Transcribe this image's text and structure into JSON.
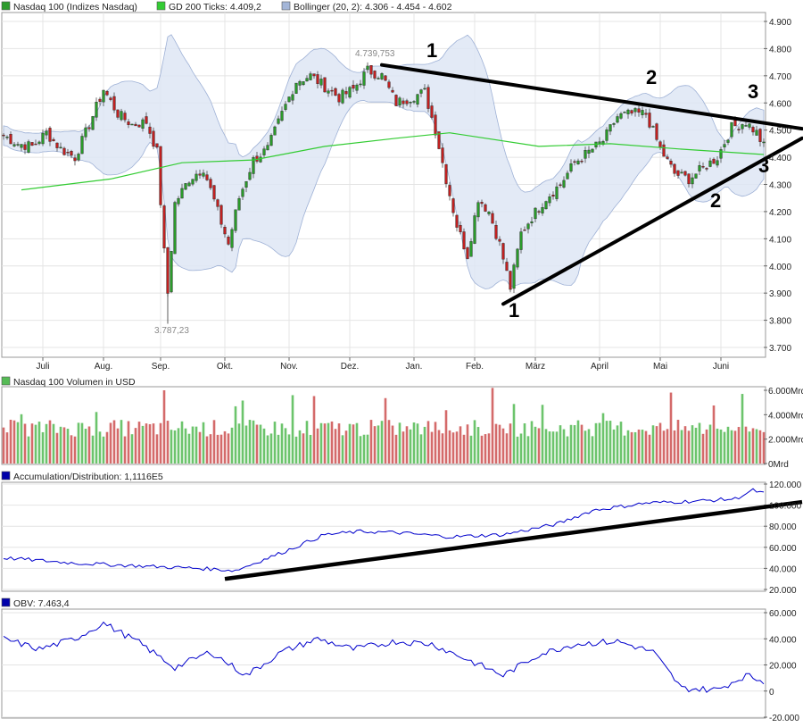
{
  "legend_top": [
    {
      "label": "Nasdaq 100 (Indizes Nasdaq)",
      "color": "#2e9c2e"
    },
    {
      "label": "GD 200 Ticks: 4.409,2",
      "color": "#33cc33"
    },
    {
      "label": "Bollinger (20, 2): 4.306 - 4.454 - 4.602",
      "color": "#a4b6d8"
    }
  ],
  "legend_volume": {
    "label": "Nasdaq 100 Volumen in USD",
    "color": "#55bb55"
  },
  "legend_ad": {
    "label": "Accumulation/Distribution: 1,1116E5",
    "color": "#0000aa"
  },
  "legend_obv": {
    "label": "OBV: 7.463,4",
    "color": "#0000aa"
  },
  "annotations": {
    "high": "4.739,753",
    "low": "3.787,23",
    "wave_marks": [
      "1",
      "2",
      "3",
      "1",
      "2",
      "3"
    ]
  },
  "chart_data": [
    {
      "type": "candlestick",
      "title": "Nasdaq 100 (Indizes Nasdaq)",
      "x_tick_labels": [
        "Juli",
        "Aug.",
        "Sep.",
        "Okt.",
        "Nov.",
        "Dez.",
        "Jan.",
        "Feb.",
        "März",
        "April",
        "Mai",
        "Juni"
      ],
      "y_tick_labels": [
        "4.900",
        "4.800",
        "4.700",
        "4.600",
        "4.500",
        "4.400",
        "4.300",
        "4.200",
        "4.100",
        "4.000",
        "3.900",
        "3.800",
        "3.700"
      ],
      "ylim": [
        3650,
        4950
      ],
      "close_series": [
        [
          0,
          4480
        ],
        [
          4,
          4450
        ],
        [
          8,
          4440
        ],
        [
          12,
          4490
        ],
        [
          16,
          4430
        ],
        [
          20,
          4400
        ],
        [
          24,
          4520
        ],
        [
          28,
          4650
        ],
        [
          32,
          4560
        ],
        [
          36,
          4520
        ],
        [
          40,
          4530
        ],
        [
          43,
          4420
        ],
        [
          45,
          4050
        ],
        [
          46,
          3900
        ],
        [
          48,
          4230
        ],
        [
          52,
          4320
        ],
        [
          56,
          4360
        ],
        [
          60,
          4200
        ],
        [
          63,
          4080
        ],
        [
          66,
          4250
        ],
        [
          70,
          4390
        ],
        [
          74,
          4430
        ],
        [
          78,
          4560
        ],
        [
          82,
          4680
        ],
        [
          86,
          4700
        ],
        [
          90,
          4660
        ],
        [
          94,
          4620
        ],
        [
          98,
          4650
        ],
        [
          102,
          4720
        ],
        [
          106,
          4700
        ],
        [
          110,
          4600
        ],
        [
          114,
          4620
        ],
        [
          118,
          4640
        ],
        [
          121,
          4500
        ],
        [
          124,
          4320
        ],
        [
          127,
          4150
        ],
        [
          130,
          4040
        ],
        [
          133,
          4250
        ],
        [
          136,
          4200
        ],
        [
          139,
          4080
        ],
        [
          142,
          3920
        ],
        [
          145,
          4120
        ],
        [
          148,
          4180
        ],
        [
          152,
          4250
        ],
        [
          156,
          4300
        ],
        [
          160,
          4380
        ],
        [
          164,
          4420
        ],
        [
          168,
          4460
        ],
        [
          172,
          4550
        ],
        [
          176,
          4560
        ],
        [
          180,
          4560
        ],
        [
          184,
          4430
        ],
        [
          188,
          4340
        ],
        [
          192,
          4320
        ],
        [
          196,
          4360
        ],
        [
          200,
          4400
        ],
        [
          204,
          4510
        ],
        [
          208,
          4530
        ],
        [
          211,
          4490
        ],
        [
          213,
          4440
        ]
      ],
      "gd200": [
        [
          5,
          4280
        ],
        [
          30,
          4320
        ],
        [
          50,
          4380
        ],
        [
          70,
          4390
        ],
        [
          90,
          4440
        ],
        [
          110,
          4470
        ],
        [
          125,
          4490
        ],
        [
          150,
          4440
        ],
        [
          170,
          4450
        ],
        [
          190,
          4430
        ],
        [
          213,
          4410
        ]
      ],
      "bollinger": {
        "upper": 4602,
        "middle": 4454,
        "lower": 4306
      },
      "trend_lines": [
        {
          "from": [
            106,
            4740
          ],
          "to": [
            224,
            4505
          ]
        },
        {
          "from": [
            140,
            3860
          ],
          "to": [
            224,
            4470
          ]
        }
      ]
    },
    {
      "type": "bar",
      "title": "Nasdaq 100 Volumen in USD",
      "y_tick_labels": [
        "6.000Mrd",
        "4.000Mrd",
        "2.000Mrd",
        "0Mrd"
      ],
      "ylim": [
        0,
        6000
      ]
    },
    {
      "type": "line",
      "title": "Accumulation/Distribution: 1,1116E5",
      "y_tick_labels": [
        "120.000",
        "100.000",
        "80.000",
        "60.000",
        "40.000",
        "20.000"
      ],
      "ylim": [
        20000,
        120000
      ],
      "series": [
        [
          0,
          50000
        ],
        [
          20,
          45000
        ],
        [
          40,
          42000
        ],
        [
          55,
          40000
        ],
        [
          65,
          38000
        ],
        [
          78,
          55000
        ],
        [
          90,
          72000
        ],
        [
          100,
          75000
        ],
        [
          110,
          74000
        ],
        [
          125,
          70000
        ],
        [
          140,
          72000
        ],
        [
          155,
          82000
        ],
        [
          165,
          95000
        ],
        [
          180,
          102000
        ],
        [
          195,
          104000
        ],
        [
          205,
          106000
        ],
        [
          210,
          114000
        ],
        [
          213,
          111160
        ]
      ],
      "trend_line": {
        "from": [
          62,
          30000
        ],
        "to": [
          226,
          103000
        ]
      }
    },
    {
      "type": "line",
      "title": "OBV: 7.463,4",
      "y_tick_labels": [
        "60.000",
        "40.000",
        "20.000",
        "0",
        "-20.000"
      ],
      "ylim": [
        -20000,
        60000
      ],
      "series": [
        [
          0,
          40000
        ],
        [
          10,
          32000
        ],
        [
          20,
          40000
        ],
        [
          28,
          52000
        ],
        [
          38,
          37000
        ],
        [
          48,
          18000
        ],
        [
          58,
          30000
        ],
        [
          68,
          12000
        ],
        [
          78,
          30000
        ],
        [
          88,
          40000
        ],
        [
          98,
          32000
        ],
        [
          110,
          38000
        ],
        [
          120,
          36000
        ],
        [
          130,
          24000
        ],
        [
          140,
          12000
        ],
        [
          150,
          28000
        ],
        [
          160,
          36000
        ],
        [
          172,
          38000
        ],
        [
          182,
          30000
        ],
        [
          190,
          2000
        ],
        [
          200,
          1000
        ],
        [
          208,
          12000
        ],
        [
          213,
          7463
        ]
      ]
    }
  ]
}
